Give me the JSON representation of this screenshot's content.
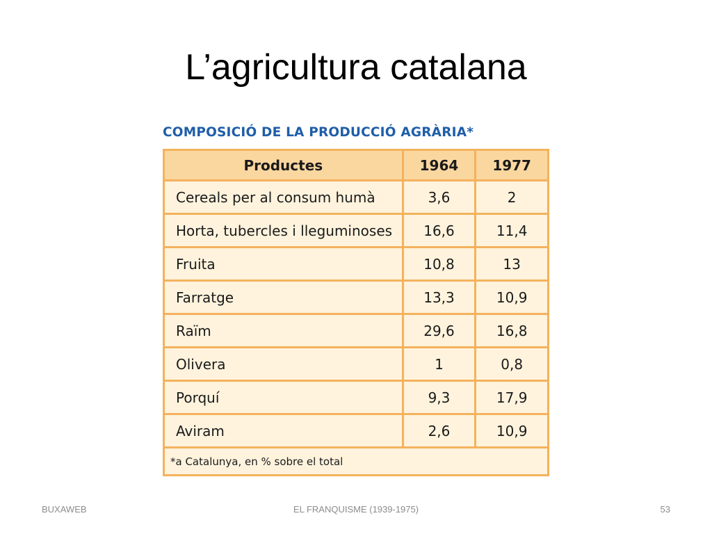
{
  "slide": {
    "title": "L’agricultura catalana"
  },
  "table": {
    "heading": "COMPOSICIÓ DE LA PRODUCCIÓ AGRÀRIA*",
    "headers": [
      "Productes",
      "1964",
      "1977"
    ],
    "rows": [
      [
        "Cereals per al consum humà",
        "3,6",
        "2"
      ],
      [
        "Horta, tubercles i lleguminoses",
        "16,6",
        "11,4"
      ],
      [
        "Fruita",
        "10,8",
        "13"
      ],
      [
        "Farratge",
        "13,3",
        "10,9"
      ],
      [
        "Raïm",
        "29,6",
        "16,8"
      ],
      [
        "Olivera",
        "1",
        "0,8"
      ],
      [
        "Porquí",
        "9,3",
        "17,9"
      ],
      [
        "Aviram",
        "2,6",
        "10,9"
      ]
    ],
    "footnote": "*a Catalunya, en % sobre el total"
  },
  "footer": {
    "left": "BUXAWEB",
    "center": "EL FRANQUISME (1939-1975)",
    "right": "53"
  },
  "colors": {
    "heading": "#1f5ea8",
    "table_border": "#f4b25c",
    "table_header_bg": "#fbd7a0",
    "table_body_bg": "#fff3dd"
  }
}
